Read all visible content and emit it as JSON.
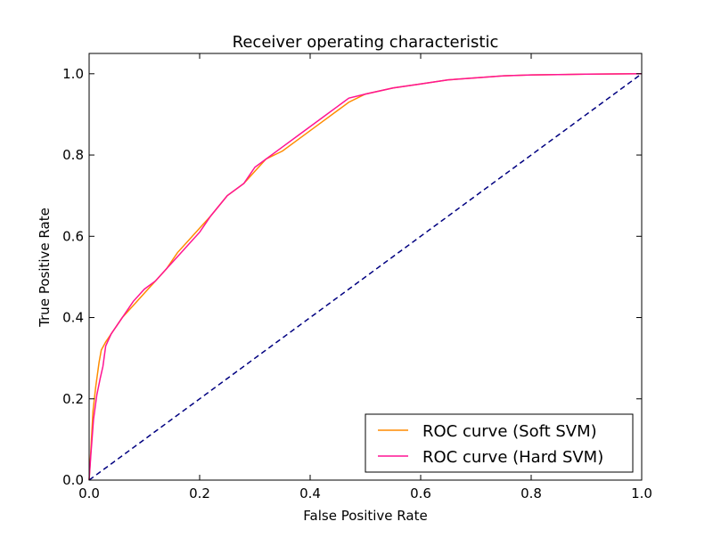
{
  "chart_data": {
    "type": "line",
    "title": "Receiver operating characteristic",
    "xlabel": "False Positive Rate",
    "ylabel": "True Positive Rate",
    "xlim": [
      0.0,
      1.0
    ],
    "ylim": [
      0.0,
      1.05
    ],
    "xticks": [
      "0.0",
      "0.2",
      "0.4",
      "0.6",
      "0.8",
      "1.0"
    ],
    "yticks": [
      "0.0",
      "0.2",
      "0.4",
      "0.6",
      "0.8",
      "1.0"
    ],
    "grid": false,
    "legend_position": "lower-right",
    "series": [
      {
        "name": "ROC curve (Soft SVM)",
        "color": "#ff8c00",
        "linestyle": "solid",
        "x": [
          0.0,
          0.003,
          0.007,
          0.012,
          0.018,
          0.022,
          0.03,
          0.04,
          0.05,
          0.06,
          0.08,
          0.1,
          0.12,
          0.14,
          0.16,
          0.18,
          0.2,
          0.22,
          0.25,
          0.28,
          0.3,
          0.32,
          0.35,
          0.38,
          0.4,
          0.42,
          0.45,
          0.47,
          0.5,
          0.55,
          0.6,
          0.65,
          0.7,
          0.75,
          0.8,
          0.9,
          1.0
        ],
        "y": [
          0.0,
          0.07,
          0.17,
          0.23,
          0.29,
          0.32,
          0.34,
          0.36,
          0.38,
          0.4,
          0.43,
          0.46,
          0.49,
          0.52,
          0.56,
          0.59,
          0.62,
          0.65,
          0.7,
          0.73,
          0.76,
          0.79,
          0.81,
          0.84,
          0.86,
          0.88,
          0.91,
          0.93,
          0.95,
          0.965,
          0.975,
          0.985,
          0.99,
          0.995,
          0.997,
          0.999,
          1.0
        ]
      },
      {
        "name": "ROC curve (Hard SVM)",
        "color": "#ff1493",
        "linestyle": "solid",
        "x": [
          0.0,
          0.003,
          0.008,
          0.014,
          0.02,
          0.025,
          0.03,
          0.04,
          0.05,
          0.06,
          0.08,
          0.1,
          0.12,
          0.14,
          0.16,
          0.18,
          0.2,
          0.22,
          0.25,
          0.28,
          0.3,
          0.32,
          0.35,
          0.38,
          0.4,
          0.42,
          0.45,
          0.47,
          0.5,
          0.55,
          0.6,
          0.65,
          0.7,
          0.75,
          0.8,
          0.9,
          1.0
        ],
        "y": [
          0.0,
          0.06,
          0.15,
          0.21,
          0.25,
          0.28,
          0.33,
          0.36,
          0.38,
          0.4,
          0.44,
          0.47,
          0.49,
          0.52,
          0.55,
          0.58,
          0.61,
          0.65,
          0.7,
          0.73,
          0.77,
          0.79,
          0.82,
          0.85,
          0.87,
          0.89,
          0.92,
          0.94,
          0.95,
          0.965,
          0.975,
          0.985,
          0.99,
          0.995,
          0.997,
          0.999,
          1.0
        ]
      },
      {
        "color": "#000080",
        "linestyle": "dashed",
        "x": [
          0.0,
          1.0
        ],
        "y": [
          0.0,
          1.0
        ]
      }
    ]
  }
}
